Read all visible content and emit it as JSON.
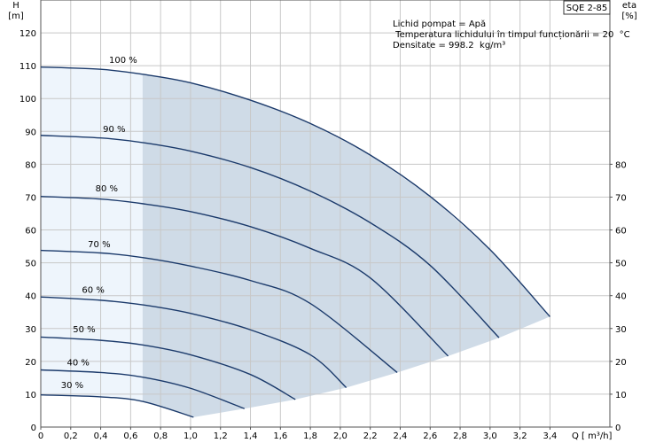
{
  "chart_data": {
    "type": "line",
    "model_badge": "SQE 2-85",
    "y_left_label": {
      "symbol": "H",
      "unit": "[m]"
    },
    "y_right_label": {
      "symbol": "eta",
      "unit": "[%]"
    },
    "x_label": {
      "symbol": "Q",
      "unit": "[ m³/h]"
    },
    "info_lines": [
      "Lichid pompat = Apă",
      " Temperatura lichidului în timpul funcționării = 20  °C",
      "Densitate = 998.2  kg/m³"
    ],
    "xlim": [
      0,
      3.8
    ],
    "ylim_left": [
      0,
      130
    ],
    "ylim_right": [
      0,
      130
    ],
    "x_ticks": [
      "0",
      "0,2",
      "0,4",
      "0,6",
      "0,8",
      "1,0",
      "1,2",
      "1,4",
      "1,6",
      "1,8",
      "2,0",
      "2,2",
      "2,4",
      "2,6",
      "2,8",
      "3,0",
      "3,2",
      "3,4"
    ],
    "x_tick_values": [
      0,
      0.2,
      0.4,
      0.6,
      0.8,
      1.0,
      1.2,
      1.4,
      1.6,
      1.8,
      2.0,
      2.2,
      2.4,
      2.6,
      2.8,
      3.0,
      3.2,
      3.4
    ],
    "y_left_ticks": [
      0,
      10,
      20,
      30,
      40,
      50,
      60,
      70,
      80,
      90,
      100,
      110,
      120
    ],
    "y_right_ticks": [
      0,
      10,
      20,
      30,
      40,
      50,
      60,
      70,
      80
    ],
    "min_flow_limit_q": 0.68,
    "series": [
      {
        "name": "100 %",
        "label_at": [
          0.55,
          110
        ],
        "points": [
          [
            0,
            109.6
          ],
          [
            0.4,
            108.9
          ],
          [
            0.68,
            107.4
          ],
          [
            1.0,
            104.8
          ],
          [
            1.4,
            99.5
          ],
          [
            1.8,
            92.4
          ],
          [
            2.2,
            82.8
          ],
          [
            2.6,
            70.2
          ],
          [
            3.0,
            54.0
          ],
          [
            3.4,
            33.6
          ]
        ]
      },
      {
        "name": "90 %",
        "label_at": [
          0.49,
          89
        ],
        "points": [
          [
            0,
            88.8
          ],
          [
            0.4,
            88.0
          ],
          [
            0.68,
            86.6
          ],
          [
            1.0,
            84.0
          ],
          [
            1.4,
            79.0
          ],
          [
            1.8,
            71.8
          ],
          [
            2.2,
            62.2
          ],
          [
            2.6,
            49.2
          ],
          [
            3.06,
            27.2
          ]
        ]
      },
      {
        "name": "80 %",
        "label_at": [
          0.44,
          71
        ],
        "points": [
          [
            0,
            70.2
          ],
          [
            0.4,
            69.4
          ],
          [
            0.68,
            68.0
          ],
          [
            1.0,
            65.6
          ],
          [
            1.4,
            61.0
          ],
          [
            1.8,
            54.4
          ],
          [
            2.2,
            45.4
          ],
          [
            2.72,
            21.6
          ]
        ]
      },
      {
        "name": "70 %",
        "label_at": [
          0.39,
          54
        ],
        "points": [
          [
            0,
            53.8
          ],
          [
            0.4,
            53.0
          ],
          [
            0.68,
            51.6
          ],
          [
            1.0,
            49.0
          ],
          [
            1.4,
            44.6
          ],
          [
            1.8,
            37.6
          ],
          [
            2.38,
            16.6
          ]
        ]
      },
      {
        "name": "60 %",
        "label_at": [
          0.35,
          40
        ],
        "points": [
          [
            0,
            39.6
          ],
          [
            0.4,
            38.6
          ],
          [
            0.68,
            37.2
          ],
          [
            1.0,
            34.6
          ],
          [
            1.4,
            29.6
          ],
          [
            1.8,
            22.0
          ],
          [
            2.04,
            12.0
          ]
        ]
      },
      {
        "name": "50 %",
        "label_at": [
          0.29,
          28
        ],
        "points": [
          [
            0,
            27.4
          ],
          [
            0.4,
            26.4
          ],
          [
            0.68,
            25.0
          ],
          [
            1.0,
            22.0
          ],
          [
            1.4,
            16.0
          ],
          [
            1.7,
            8.4
          ]
        ]
      },
      {
        "name": "40 %",
        "label_at": [
          0.25,
          18
        ],
        "points": [
          [
            0,
            17.4
          ],
          [
            0.4,
            16.6
          ],
          [
            0.68,
            15.2
          ],
          [
            1.0,
            11.8
          ],
          [
            1.36,
            5.6
          ]
        ]
      },
      {
        "name": "30 %",
        "label_at": [
          0.21,
          11
        ],
        "points": [
          [
            0,
            9.8
          ],
          [
            0.4,
            9.2
          ],
          [
            0.68,
            7.8
          ],
          [
            1.02,
            3.0
          ]
        ]
      }
    ]
  }
}
